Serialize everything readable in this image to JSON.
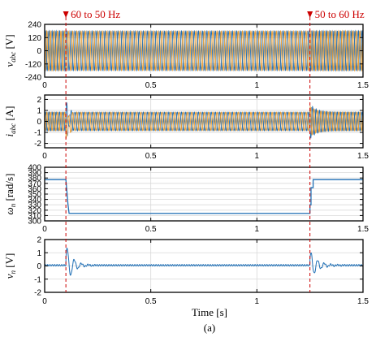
{
  "colors": {
    "phase_a": "#1f6fb5",
    "phase_b": "#f0a030",
    "phase_c": "#9c9c9c",
    "single": "#1f6fb5",
    "event": "#cc0000",
    "grid": "#d9d9d9"
  },
  "annotations": [
    {
      "id": "event1",
      "label": "60 to 50 Hz",
      "x": 0.1
    },
    {
      "id": "event2",
      "label": "50 to 60 Hz",
      "x": 1.25
    }
  ],
  "x_axis": {
    "label": "Time [s]",
    "ticks": [
      0,
      0.5,
      1,
      1.5
    ],
    "tick_labels": [
      "0",
      "0.5",
      "1",
      "1.5"
    ]
  },
  "caption": "(a)",
  "chart_data": [
    {
      "type": "line",
      "id": "vabc",
      "ylabel_main": "v",
      "ylabel_sub": "abc",
      "ylabel_unit": " [V]",
      "xlim": [
        0,
        1.5
      ],
      "ylim": [
        -240,
        240
      ],
      "yticks": [
        -240,
        -120,
        0,
        120,
        240
      ],
      "ytick_labels": [
        "-240",
        "-120",
        "0",
        "120",
        "240"
      ],
      "grid": true,
      "series": [
        {
          "phase": "a",
          "kind": "three-phase sine",
          "amplitude": 180,
          "frequency_hz": [
            [
              0,
              60
            ],
            [
              0.1,
              50
            ],
            [
              1.25,
              60
            ]
          ]
        },
        {
          "phase": "b",
          "kind": "three-phase sine",
          "amplitude": 180,
          "phase_deg": -120
        },
        {
          "phase": "c",
          "kind": "three-phase sine",
          "amplitude": 180,
          "phase_deg": 120
        }
      ]
    },
    {
      "type": "line",
      "id": "iabc",
      "ylabel_main": "i",
      "ylabel_sub": "abc",
      "ylabel_unit": " [A]",
      "xlim": [
        0,
        1.5
      ],
      "ylim": [
        -2.4,
        2.4
      ],
      "yticks": [
        -2,
        -1,
        0,
        1,
        2
      ],
      "ytick_labels": [
        "-2",
        "-1",
        "0",
        "1",
        "2"
      ],
      "grid": true,
      "series": [
        {
          "phase": "a",
          "kind": "three-phase sine",
          "amplitude": 0.85,
          "transient_peaks": [
            [
              0.1,
              2.3
            ],
            [
              1.25,
              1.6
            ]
          ]
        },
        {
          "phase": "b",
          "kind": "three-phase sine",
          "amplitude": 0.85,
          "phase_deg": -120
        },
        {
          "phase": "c",
          "kind": "three-phase sine",
          "amplitude": 0.85,
          "phase_deg": 120
        }
      ]
    },
    {
      "type": "line",
      "id": "omega",
      "ylabel_main": "ω",
      "ylabel_sub": "n",
      "ylabel_unit": " [rad/s]",
      "xlim": [
        0,
        1.5
      ],
      "ylim": [
        300,
        400
      ],
      "yticks": [
        300,
        310,
        320,
        330,
        340,
        350,
        360,
        370,
        380,
        390,
        400
      ],
      "ytick_labels": [
        "300",
        "310",
        "320",
        "330",
        "340",
        "350",
        "360",
        "370",
        "380",
        "390",
        "400"
      ],
      "grid": true,
      "series": [
        {
          "x": [
            0,
            0.1,
            0.1,
            0.11,
            0.11,
            0.115,
            0.115,
            1.25,
            1.25,
            1.255,
            1.255,
            1.265,
            1.265,
            1.5
          ],
          "y": [
            377,
            377,
            377,
            330,
            330,
            314,
            314,
            314,
            330,
            330,
            362,
            362,
            377,
            377
          ]
        }
      ]
    },
    {
      "type": "line",
      "id": "vn",
      "ylabel_main": "v",
      "ylabel_sub": "n",
      "ylabel_unit": " [V]",
      "xlim": [
        0,
        1.5
      ],
      "ylim": [
        -2,
        2
      ],
      "yticks": [
        -2,
        -1,
        0,
        1,
        2
      ],
      "ytick_labels": [
        "-2",
        "-1",
        "0",
        "1",
        "2"
      ],
      "grid": true,
      "series": [
        {
          "kind": "damped oscillation",
          "baseline": 0.05,
          "events": [
            [
              0.1,
              1.6
            ],
            [
              1.25,
              1.1
            ]
          ],
          "steady_ripple": 0.08
        }
      ]
    }
  ]
}
